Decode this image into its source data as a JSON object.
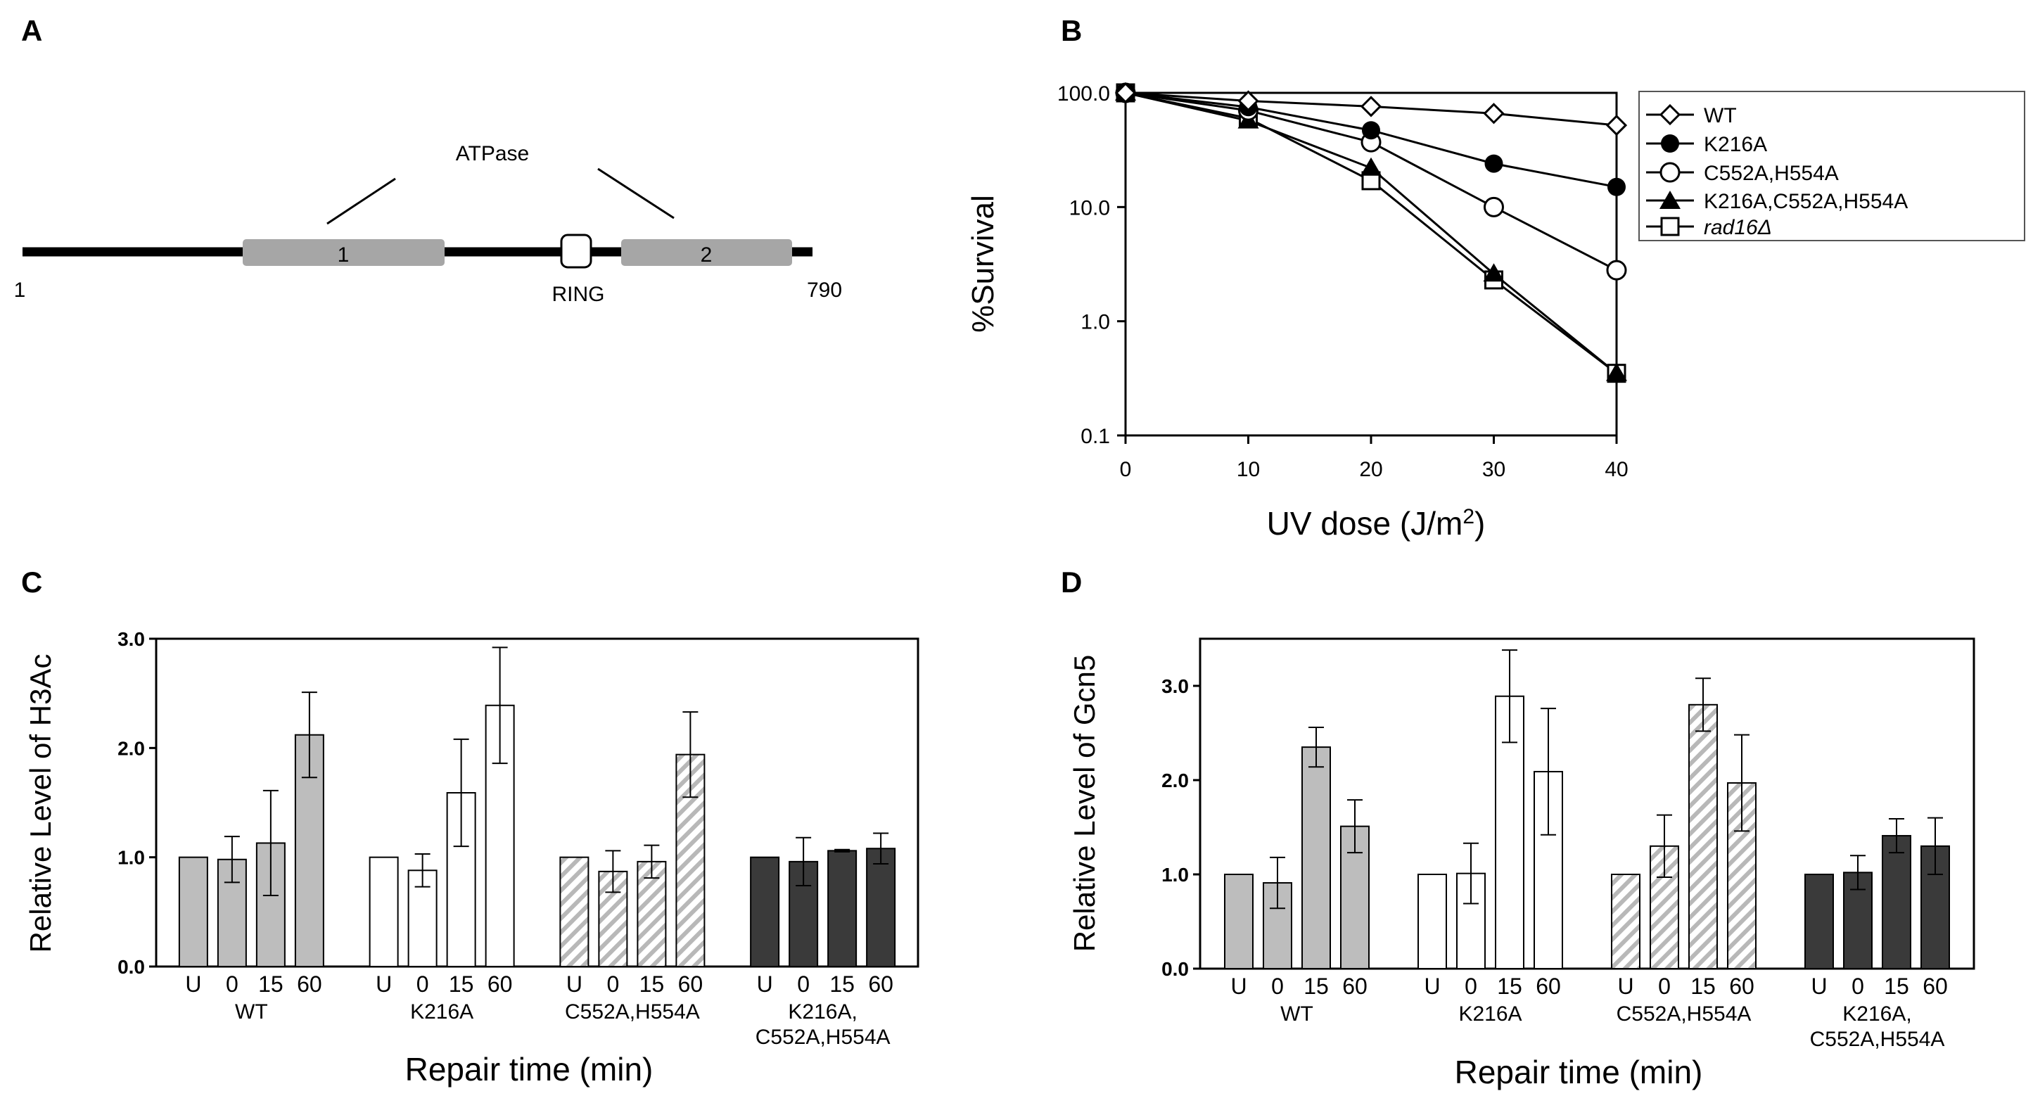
{
  "panel_labels": {
    "a": "A",
    "b": "B",
    "c": "C",
    "d": "D"
  },
  "panel_a": {
    "domain_label": "ATPase",
    "start": "1",
    "end": "790",
    "box1": "1",
    "box2": "2",
    "ring": "RING"
  },
  "legend": {
    "wt": "WT",
    "k216a": "K216A",
    "c552a": "C552A,H554A",
    "triple": "K216A,C552A,H554A",
    "rad16": "rad16Δ"
  },
  "colors": {
    "gray": "#bdbdbd",
    "dark": "#3a3a3a",
    "white": "#ffffff",
    "hatch": "#b8b8b8"
  },
  "repair_xlabel": "Repair time (min)",
  "chart_data": [
    {
      "type": "line",
      "title": "B",
      "xlabel": "UV dose (J/m",
      "xlabel_sup": "2",
      "xlabel_close": ")",
      "ylabel": "%Survival",
      "yscale": "log",
      "ylim": [
        0.1,
        100
      ],
      "xlim": [
        0,
        40
      ],
      "x": [
        0,
        10,
        20,
        30,
        40
      ],
      "xtick_labels": [
        "0",
        "10",
        "20",
        "30",
        "40"
      ],
      "ytick_labels": [
        "0.1",
        "1.0",
        "10.0",
        "100.0"
      ],
      "series": [
        {
          "name": "WT",
          "values": [
            100,
            85,
            76,
            66,
            52
          ]
        },
        {
          "name": "K216A",
          "values": [
            100,
            75,
            47,
            24,
            15
          ]
        },
        {
          "name": "C552A,H554A",
          "values": [
            100,
            70,
            37,
            10,
            2.8
          ]
        },
        {
          "name": "K216A,C552A,H554A",
          "values": [
            100,
            57,
            22,
            2.6,
            0.35
          ]
        },
        {
          "name": "rad16Δ",
          "values": [
            100,
            60,
            17,
            2.3,
            0.35
          ]
        }
      ]
    },
    {
      "type": "bar",
      "title": "C",
      "ylabel": "Relative Level of H3Ac",
      "ylim": [
        0,
        3
      ],
      "ytick_labels": [
        "0.0",
        "1.0",
        "2.0",
        "3.0"
      ],
      "groups": [
        "WT",
        "K216A",
        "C552A,H554A",
        "K216A,\nC552A,H554A"
      ],
      "categories": [
        "U",
        "0",
        "15",
        "60"
      ],
      "series": [
        {
          "name": "WT",
          "values": [
            1.0,
            0.98,
            1.13,
            2.12
          ],
          "errors": [
            0,
            0.21,
            0.48,
            0.39
          ]
        },
        {
          "name": "K216A",
          "values": [
            1.0,
            0.88,
            1.59,
            2.39
          ],
          "errors": [
            0,
            0.15,
            0.49,
            0.53
          ]
        },
        {
          "name": "C552A,H554A",
          "values": [
            1.0,
            0.87,
            0.96,
            1.94
          ],
          "errors": [
            0,
            0.19,
            0.15,
            0.39
          ]
        },
        {
          "name": "K216A,C552A,H554A",
          "values": [
            1.0,
            0.96,
            1.06,
            1.08
          ],
          "errors": [
            0,
            0.22,
            0.01,
            0.14
          ]
        }
      ]
    },
    {
      "type": "bar",
      "title": "D",
      "ylabel": "Relative Level of Gcn5",
      "ylim": [
        0,
        3.5
      ],
      "ytick_labels": [
        "0.0",
        "1.0",
        "2.0",
        "3.0"
      ],
      "groups": [
        "WT",
        "K216A",
        "C552A,H554A",
        "K216A,\nC552A,H554A"
      ],
      "categories": [
        "U",
        "0",
        "15",
        "60"
      ],
      "series": [
        {
          "name": "WT",
          "values": [
            1.0,
            0.91,
            2.35,
            1.51
          ],
          "errors": [
            0,
            0.27,
            0.21,
            0.28
          ]
        },
        {
          "name": "K216A",
          "values": [
            1.0,
            1.01,
            2.89,
            2.09
          ],
          "errors": [
            0,
            0.32,
            0.49,
            0.67
          ]
        },
        {
          "name": "C552A,H554A",
          "values": [
            1.0,
            1.3,
            2.8,
            1.97
          ],
          "errors": [
            0,
            0.33,
            0.28,
            0.51
          ]
        },
        {
          "name": "K216A,C552A,H554A",
          "values": [
            1.0,
            1.02,
            1.41,
            1.3
          ],
          "errors": [
            0,
            0.18,
            0.18,
            0.3
          ]
        }
      ]
    }
  ]
}
